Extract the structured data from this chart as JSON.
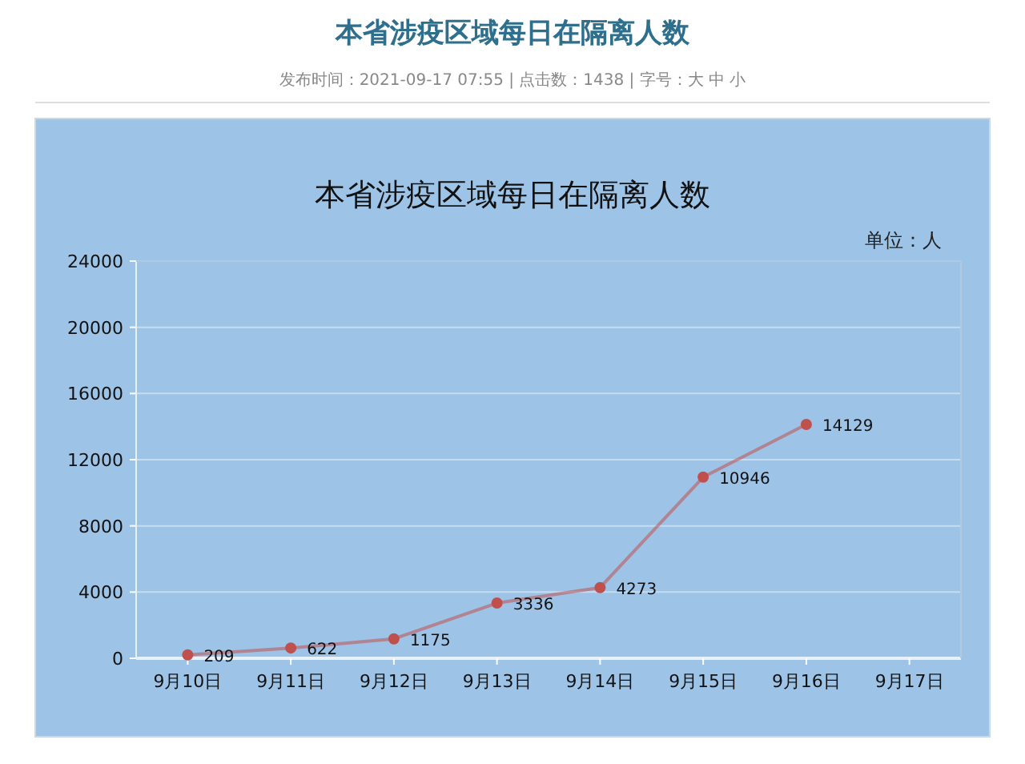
{
  "chart_data": {
    "type": "line",
    "title": "本省涉疫区域每日在隔离人数",
    "subtitle": "发布时间：2021-09-17 07:55 | 点击数：1438 | 字号：大 中 小",
    "annotations": [
      "本省涉疫区域每日在隔离人数"
    ],
    "ylabel": "单位：人",
    "categories": [
      "9月10日",
      "9月11日",
      "9月12日",
      "9月13日",
      "9月14日",
      "9月15日",
      "9月16日",
      "9月17日"
    ],
    "series": [
      {
        "color": "#c0504d",
        "values": [
          209,
          622,
          1175,
          3336,
          4273,
          10946,
          14129,
          null
        ]
      }
    ],
    "ylim": [
      0,
      24000
    ],
    "yticks": [
      0,
      4000,
      8000,
      12000,
      16000,
      20000,
      24000
    ],
    "grid": "y",
    "marker": "circle",
    "line_style": "solid",
    "data_labels": true
  }
}
